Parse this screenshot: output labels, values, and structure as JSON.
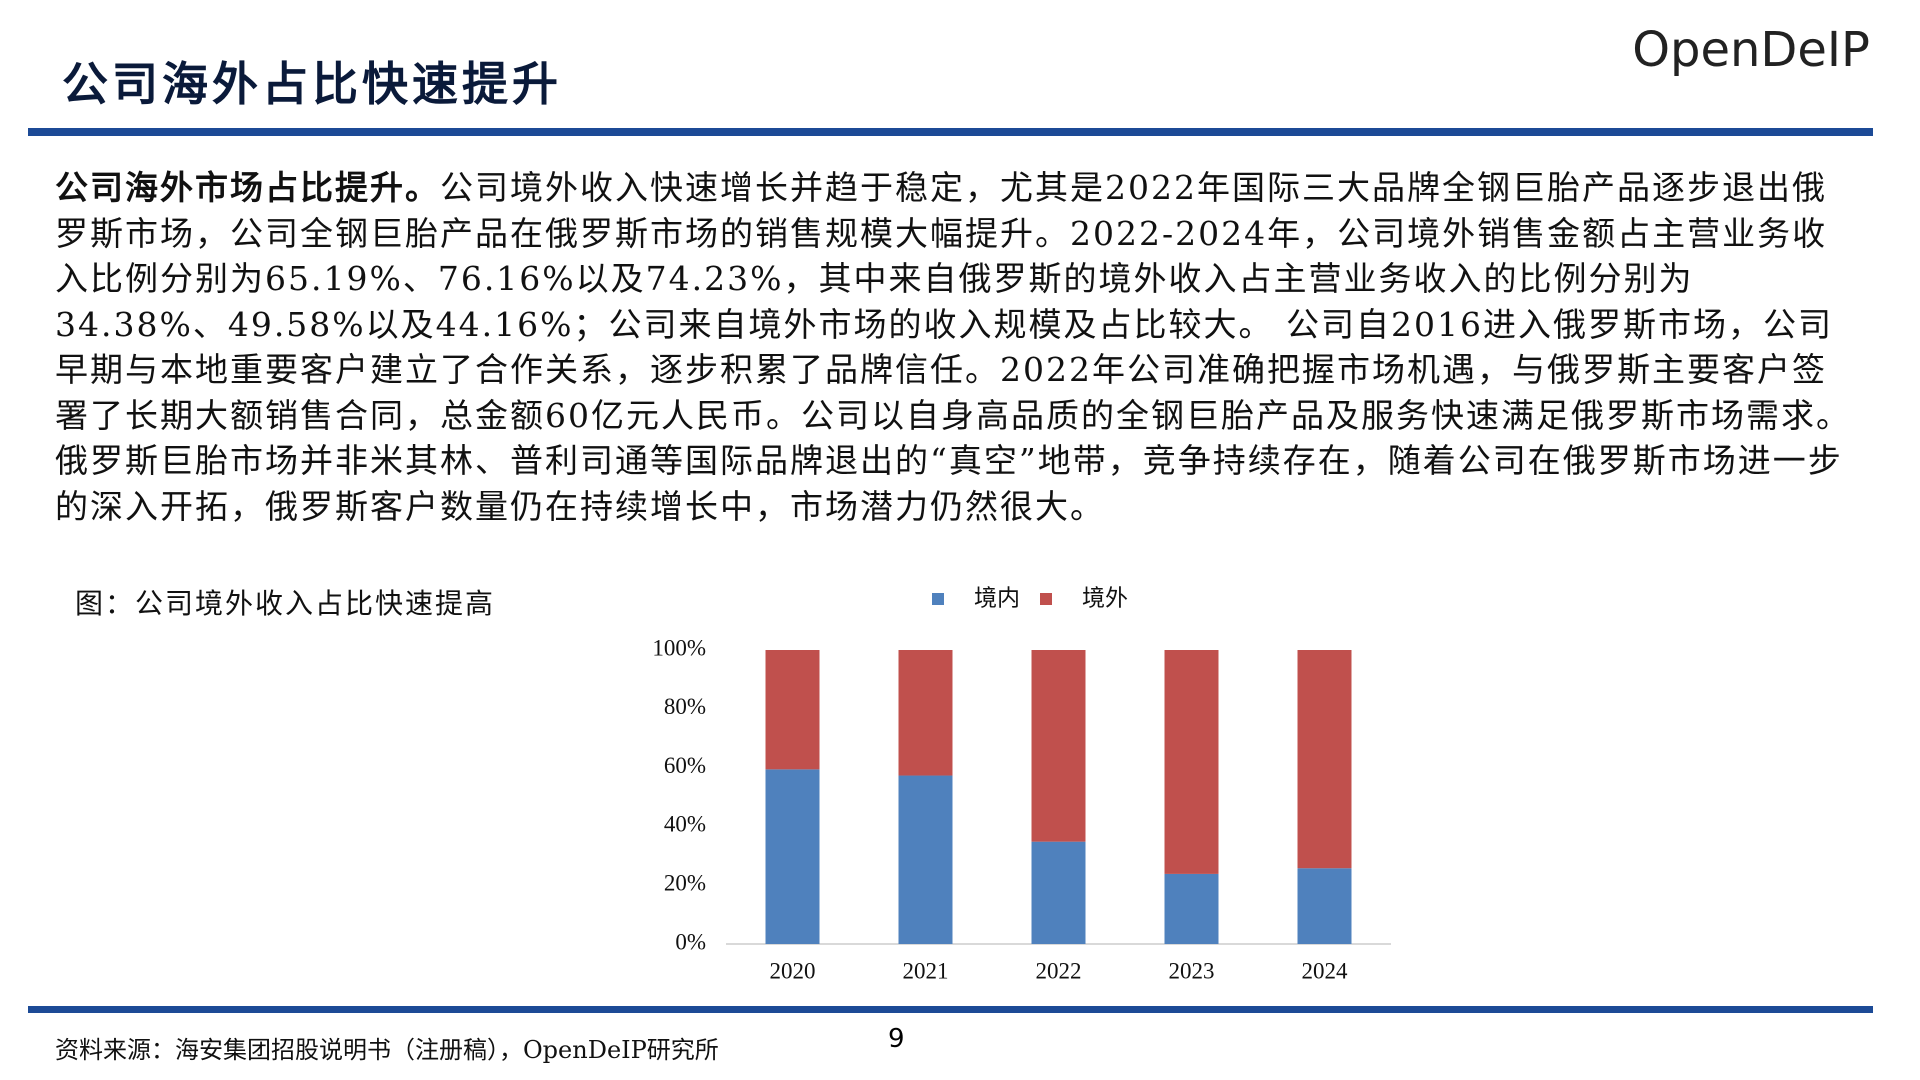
{
  "header": {
    "title": "公司海外占比快速提升",
    "logo": "OpenDeIP"
  },
  "body": {
    "lead": "公司海外市场占比提升。",
    "text": "公司境外收入快速增长并趋于稳定，尤其是2022年国际三大品牌全钢巨胎产品逐步退出俄罗斯市场，公司全钢巨胎产品在俄罗斯市场的销售规模大幅提升。2022-2024年，公司境外销售金额占主营业务收入比例分别为65.19%、76.16%以及74.23%，其中来自俄罗斯的境外收入占主营业务收入的比例分别为34.38%、49.58%以及44.16%；公司来自境外市场的收入规模及占比较大。 公司自2016进入俄罗斯市场，公司早期与本地重要客户建立了合作关系，逐步积累了品牌信任。2022年公司准确把握市场机遇，与俄罗斯主要客户签署了长期大额销售合同，总金额60亿元人民币。公司以自身高品质的全钢巨胎产品及服务快速满足俄罗斯市场需求。俄罗斯巨胎市场并非米其林、普利司通等国际品牌退出的“真空”地带，竞争持续存在，随着公司在俄罗斯市场进一步的深入开拓，俄罗斯客户数量仍在持续增长中，市场潜力仍然很大。"
  },
  "figure_caption": "图：公司境外收入占比快速提高",
  "chart_data": {
    "type": "stacked-bar",
    "categories": [
      "2020",
      "2021",
      "2022",
      "2023",
      "2024"
    ],
    "series": [
      {
        "name": "境内",
        "color": "#4f81bd",
        "values": [
          59.4,
          57.3,
          34.81,
          23.84,
          25.77
        ]
      },
      {
        "name": "境外",
        "color": "#c0504d",
        "values": [
          40.6,
          42.7,
          65.19,
          76.16,
          74.23
        ]
      }
    ],
    "ylim": [
      0,
      100
    ],
    "yticks": [
      {
        "value": 0,
        "label": "0%"
      },
      {
        "value": 20,
        "label": "20%"
      },
      {
        "value": 40,
        "label": "40%"
      },
      {
        "value": 60,
        "label": "60%"
      },
      {
        "value": 80,
        "label": "80%"
      },
      {
        "value": 100,
        "label": "100%"
      }
    ],
    "legend": "top"
  },
  "footer": {
    "source": "资料来源：海安集团招股说明书（注册稿），OpenDeIP研究所",
    "page": "9"
  }
}
